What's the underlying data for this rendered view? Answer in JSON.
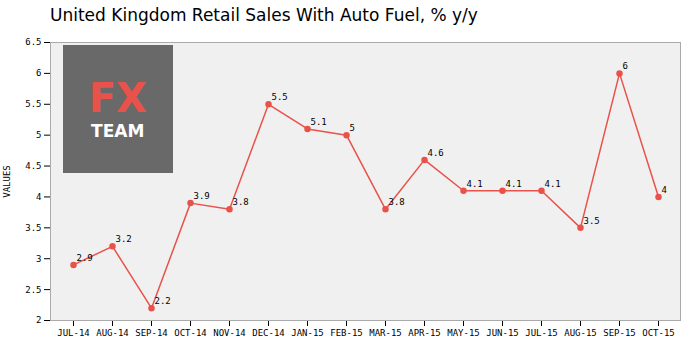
{
  "chart_data": {
    "type": "line",
    "title": "United Kingdom Retail Sales With Auto Fuel, % y/y",
    "ylabel": "VALUES",
    "categories": [
      "JUL-14",
      "AUG-14",
      "SEP-14",
      "OCT-14",
      "NOV-14",
      "DEC-14",
      "JAN-15",
      "FEB-15",
      "MAR-15",
      "APR-15",
      "MAY-15",
      "JUN-15",
      "JUL-15",
      "AUG-15",
      "SEP-15",
      "OCT-15"
    ],
    "values": [
      2.9,
      3.2,
      2.2,
      3.9,
      3.8,
      5.5,
      5.1,
      5.0,
      3.8,
      4.6,
      4.1,
      4.1,
      4.1,
      3.5,
      6.0,
      4.0
    ],
    "color": "#e8524a",
    "marker": "circle",
    "ylim": [
      2.0,
      6.5
    ],
    "yticks": [
      2.0,
      2.5,
      3.0,
      3.5,
      4.0,
      4.5,
      5.0,
      5.5,
      6.0,
      6.5
    ],
    "grid": true,
    "data_labels": true,
    "annotations": [
      "FX",
      "TEAM"
    ]
  }
}
